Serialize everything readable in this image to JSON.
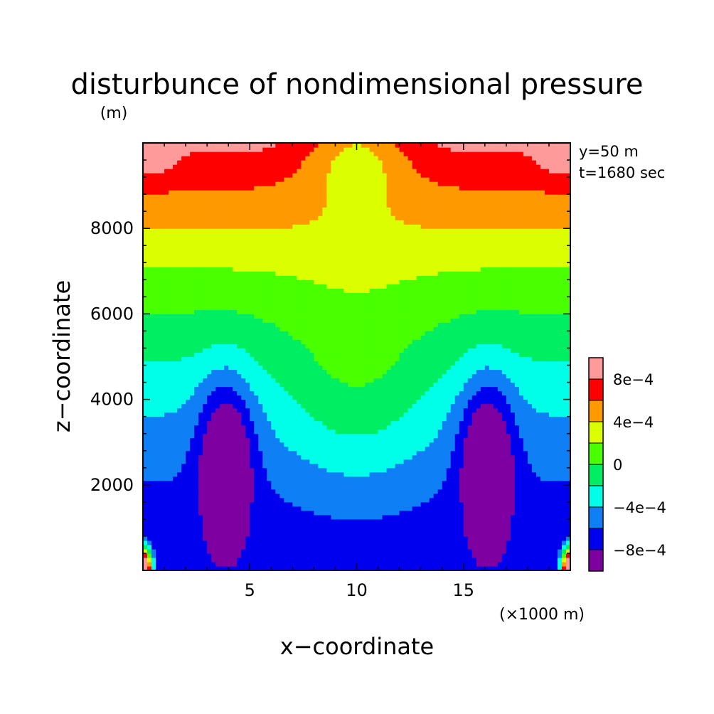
{
  "chart_data": {
    "type": "heatmap",
    "title": "disturbunce of nondimensional pressure",
    "unit_label": "(m)",
    "annotations": [
      "y=50 m",
      "t=1680 sec"
    ],
    "xlabel": "x−coordinate",
    "x_unit_label": "(×1000 m)",
    "ylabel": "z−coordinate",
    "xlim": [
      0,
      20
    ],
    "ylim": [
      0,
      10000
    ],
    "x_ticks": [
      {
        "value": 5,
        "label": "5"
      },
      {
        "value": 10,
        "label": "10"
      },
      {
        "value": 15,
        "label": "15"
      }
    ],
    "y_ticks": [
      {
        "value": 2000,
        "label": "2000"
      },
      {
        "value": 4000,
        "label": "4000"
      },
      {
        "value": 6000,
        "label": "6000"
      },
      {
        "value": 8000,
        "label": "8000"
      }
    ],
    "colorbar": {
      "levels": [
        -0.001,
        -0.0008,
        -0.0006,
        -0.0004,
        -0.0002,
        0,
        0.0002,
        0.0004,
        0.0006,
        0.0008,
        0.001
      ],
      "colors": [
        "#7f00a0",
        "#0000ee",
        "#0f7ff5",
        "#00ffe8",
        "#00ee62",
        "#49ff00",
        "#dcff00",
        "#ff9900",
        "#ff0000",
        "#ff9a9a"
      ],
      "tick_labels": [
        {
          "value": -0.0008,
          "label": "−8e−4"
        },
        {
          "value": -0.0004,
          "label": "−4e−4"
        },
        {
          "value": 0,
          "label": "0"
        },
        {
          "value": 0.0004,
          "label": "4e−4"
        },
        {
          "value": 0.0008,
          "label": "8e−4"
        }
      ]
    },
    "features": [
      {
        "kind": "minimum",
        "x": 3.9,
        "z": 2800,
        "value": -0.0009
      },
      {
        "kind": "minimum",
        "x": 16.1,
        "z": 2800,
        "value": -0.0009
      },
      {
        "kind": "maximum",
        "x": 0.5,
        "z": 9800,
        "value": 0.0009
      },
      {
        "kind": "maximum",
        "x": 19.5,
        "z": 9800,
        "value": 0.0009
      }
    ]
  }
}
